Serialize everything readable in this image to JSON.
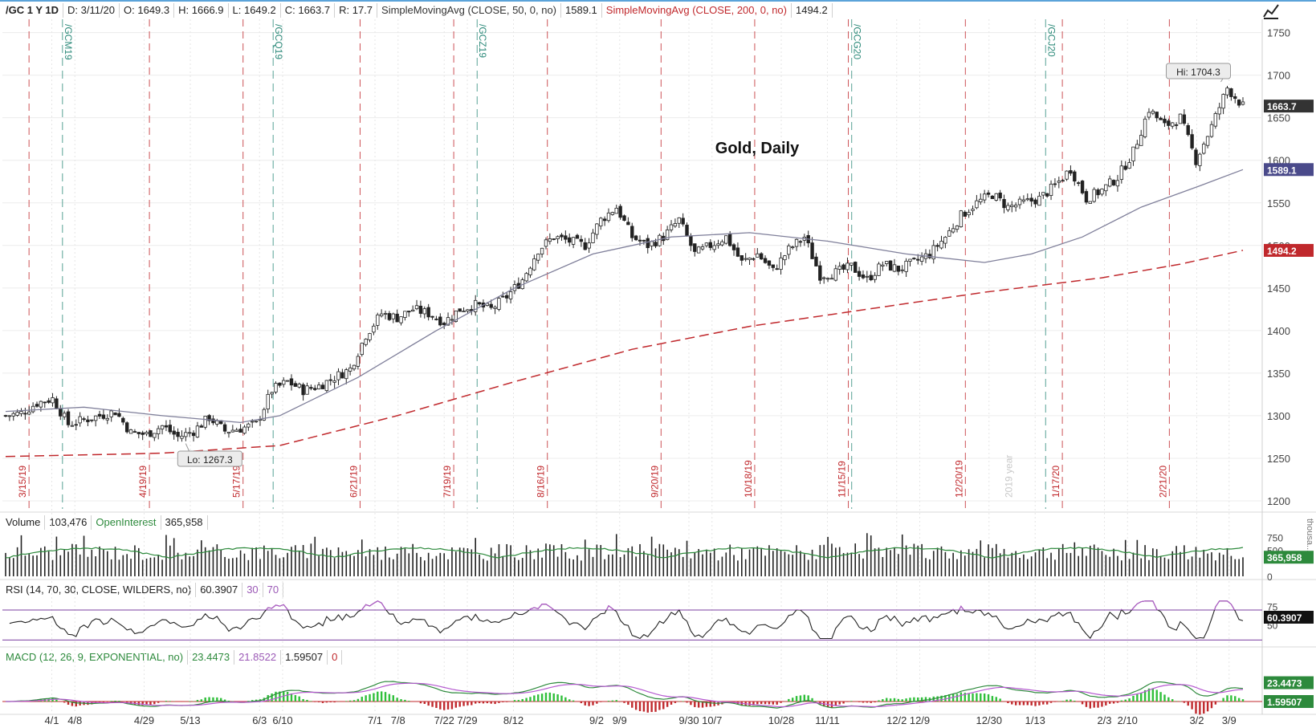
{
  "header": {
    "symbol": "/GC 1 Y 1D",
    "date": "D: 3/11/20",
    "open": "O: 1649.3",
    "high": "H: 1666.9",
    "low": "L: 1649.2",
    "close": "C: 1663.7",
    "range": "R: 17.7",
    "sma50_label": "SimpleMovingAvg (CLOSE, 50, 0, no)",
    "sma50_value": "1589.1",
    "sma200_label": "SimpleMovingAvg (CLOSE, 200, 0, no)",
    "sma200_value": "1494.2"
  },
  "volume_header": {
    "label": "Volume",
    "value": "103,476",
    "oi_label": "OpenInterest",
    "oi_value": "365,958"
  },
  "rsi_header": {
    "label": "RSI (14, 70, 30, CLOSE, WILDERS, no)",
    "value": "60.3907",
    "low": "30",
    "high": "70"
  },
  "macd_header": {
    "label": "MACD (12, 26, 9, EXPONENTIAL, no)",
    "value": "23.4473",
    "avg": "21.8522",
    "diff": "1.59507",
    "zero": "0"
  },
  "chart_data": {
    "type": "candlestick",
    "title": "Gold, Daily",
    "price_axis": {
      "ticks": [
        1200,
        1250,
        1300,
        1350,
        1400,
        1450,
        1500,
        1550,
        1600,
        1650,
        1700,
        1750
      ]
    },
    "x_tick_labels": [
      "4/1",
      "4/8",
      "4/29",
      "5/13",
      "6/3",
      "6/10",
      "7/1",
      "7/8",
      "7/22",
      "7/29",
      "8/12",
      "9/2",
      "9/9",
      "9/30",
      "10/7",
      "10/28",
      "11/11",
      "12/2",
      "12/9",
      "12/30",
      "1/13",
      "2/3",
      "2/10",
      "3/2",
      "3/9"
    ],
    "expiration_labels": [
      "3/15/19",
      "4/19/19",
      "5/17/19",
      "6/21/19",
      "7/19/19",
      "8/16/19",
      "9/20/19",
      "10/18/19",
      "11/15/19",
      "12/20/19",
      "1/17/20",
      "2/21/20"
    ],
    "contract_labels": [
      "/GCM19",
      "/GCQ19",
      "/GCZ19",
      "/GCG20",
      "/GCJ20"
    ],
    "year_label": "2019 year",
    "hi_label": "Hi: 1704.3",
    "lo_label": "Lo: 1267.3",
    "last_price": "1663.7",
    "sma50_tag": "1589.1",
    "sma200_tag": "1494.2",
    "close_path": [
      [
        0,
        1300
      ],
      [
        4,
        1303
      ],
      [
        8,
        1315
      ],
      [
        12,
        1320
      ],
      [
        16,
        1290
      ],
      [
        20,
        1295
      ],
      [
        24,
        1300
      ],
      [
        28,
        1305
      ],
      [
        32,
        1280
      ],
      [
        36,
        1278
      ],
      [
        40,
        1288
      ],
      [
        44,
        1275
      ],
      [
        48,
        1282
      ],
      [
        52,
        1298
      ],
      [
        56,
        1282
      ],
      [
        60,
        1285
      ],
      [
        64,
        1290
      ],
      [
        68,
        1330
      ],
      [
        72,
        1340
      ],
      [
        76,
        1330
      ],
      [
        80,
        1335
      ],
      [
        84,
        1345
      ],
      [
        88,
        1355
      ],
      [
        92,
        1395
      ],
      [
        96,
        1420
      ],
      [
        100,
        1415
      ],
      [
        104,
        1425
      ],
      [
        108,
        1420
      ],
      [
        112,
        1410
      ],
      [
        116,
        1425
      ],
      [
        120,
        1430
      ],
      [
        124,
        1425
      ],
      [
        128,
        1440
      ],
      [
        132,
        1460
      ],
      [
        136,
        1495
      ],
      [
        140,
        1510
      ],
      [
        144,
        1505
      ],
      [
        148,
        1500
      ],
      [
        152,
        1530
      ],
      [
        156,
        1545
      ],
      [
        160,
        1510
      ],
      [
        164,
        1500
      ],
      [
        168,
        1510
      ],
      [
        172,
        1530
      ],
      [
        176,
        1490
      ],
      [
        180,
        1500
      ],
      [
        184,
        1510
      ],
      [
        188,
        1480
      ],
      [
        192,
        1490
      ],
      [
        196,
        1470
      ],
      [
        200,
        1495
      ],
      [
        204,
        1510
      ],
      [
        208,
        1465
      ],
      [
        212,
        1468
      ],
      [
        216,
        1475
      ],
      [
        220,
        1460
      ],
      [
        224,
        1478
      ],
      [
        228,
        1472
      ],
      [
        232,
        1480
      ],
      [
        236,
        1490
      ],
      [
        240,
        1510
      ],
      [
        244,
        1535
      ],
      [
        248,
        1550
      ],
      [
        252,
        1560
      ],
      [
        256,
        1545
      ],
      [
        260,
        1550
      ],
      [
        264,
        1555
      ],
      [
        268,
        1570
      ],
      [
        272,
        1590
      ],
      [
        276,
        1555
      ],
      [
        280,
        1565
      ],
      [
        284,
        1580
      ],
      [
        288,
        1610
      ],
      [
        292,
        1660
      ],
      [
        296,
        1640
      ],
      [
        300,
        1650
      ],
      [
        304,
        1600
      ],
      [
        308,
        1640
      ],
      [
        312,
        1685
      ],
      [
        316,
        1663.7
      ]
    ],
    "sma50_points": [
      [
        0,
        1305
      ],
      [
        20,
        1310
      ],
      [
        40,
        1300
      ],
      [
        60,
        1292
      ],
      [
        70,
        1300
      ],
      [
        90,
        1345
      ],
      [
        110,
        1400
      ],
      [
        130,
        1450
      ],
      [
        150,
        1490
      ],
      [
        170,
        1510
      ],
      [
        190,
        1515
      ],
      [
        210,
        1505
      ],
      [
        230,
        1490
      ],
      [
        250,
        1480
      ],
      [
        262,
        1490
      ],
      [
        275,
        1510
      ],
      [
        290,
        1545
      ],
      [
        305,
        1570
      ],
      [
        316,
        1589.1
      ]
    ],
    "sma200_points": [
      [
        0,
        1252
      ],
      [
        40,
        1256
      ],
      [
        70,
        1265
      ],
      [
        100,
        1300
      ],
      [
        130,
        1340
      ],
      [
        160,
        1378
      ],
      [
        190,
        1405
      ],
      [
        220,
        1425
      ],
      [
        250,
        1445
      ],
      [
        280,
        1462
      ],
      [
        300,
        1478
      ],
      [
        316,
        1494.2
      ]
    ],
    "volume_axis": {
      "ticks": [
        0,
        500,
        750
      ],
      "unit": "thousa..."
    },
    "oi_tag": "365,958",
    "rsi_axis": {
      "ticks": [
        50,
        75
      ]
    },
    "rsi_tag": "60.3907",
    "macd_tag": "23.4473",
    "macd_diff_tag": "1.59507"
  },
  "colors": {
    "up": "#ffffff",
    "down": "#222222",
    "sma50": "#7f7f9a",
    "sma200": "#c0282c",
    "expiry_red": "#c0282c",
    "contract_green": "#2d8a7a",
    "rsi": "#222222",
    "rsi_band": "#7b3fa0",
    "macd": "#2d8a3c",
    "macd_avg": "#b55ad0",
    "hist_up": "#2fbf3a",
    "hist_down": "#c0282c",
    "oi": "#2d8a3c",
    "tag_price": "#333333",
    "tag_sma50": "#4a4a8a",
    "tag_sma200": "#c0282c"
  }
}
